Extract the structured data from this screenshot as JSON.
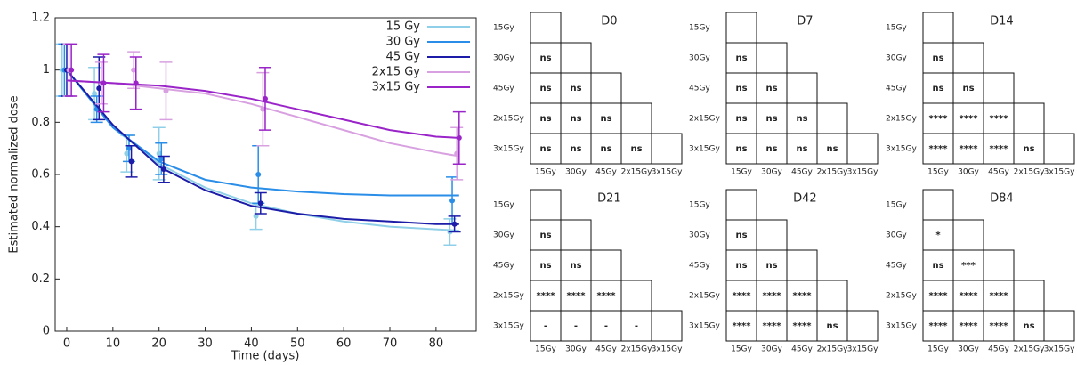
{
  "chart_data": {
    "type": "errorbar-line",
    "y_label": "Estimated normalized dose",
    "x_label": "Time (days)",
    "xlim": [
      -2.5,
      88.7
    ],
    "ylim": [
      0,
      1.2
    ],
    "xticks": [
      0,
      10,
      20,
      30,
      40,
      50,
      60,
      70,
      80
    ],
    "yticks": [
      0,
      0.2,
      0.4,
      0.6,
      0.8,
      1,
      1.2
    ],
    "x": [
      0,
      7,
      14,
      21,
      42,
      84
    ],
    "fit_x": [
      0,
      10,
      20,
      30,
      40,
      50,
      60,
      70,
      80,
      85
    ],
    "series": [
      {
        "name": "15 Gy",
        "color": "#8fd0e8",
        "values": [
          1.0,
          0.91,
          0.68,
          0.68,
          0.44,
          0.38
        ],
        "errors": [
          0.1,
          0.1,
          0.07,
          0.1,
          0.05,
          0.05
        ],
        "fit": [
          1.0,
          0.78,
          0.64,
          0.55,
          0.49,
          0.45,
          0.42,
          0.4,
          0.39,
          0.385
        ]
      },
      {
        "name": "30 Gy",
        "color": "#2a8ee8",
        "values": [
          1.0,
          0.85,
          0.7,
          0.66,
          0.6,
          0.5
        ],
        "errors": [
          0.1,
          0.05,
          0.05,
          0.06,
          0.11,
          0.09
        ],
        "fit": [
          1.0,
          0.78,
          0.65,
          0.58,
          0.55,
          0.535,
          0.525,
          0.52,
          0.52,
          0.52
        ]
      },
      {
        "name": "45 Gy",
        "color": "#1c1ca8",
        "values": [
          1.0,
          0.93,
          0.65,
          0.62,
          0.49,
          0.41
        ],
        "errors": [
          0.1,
          0.12,
          0.06,
          0.05,
          0.04,
          0.03
        ],
        "fit": [
          1.0,
          0.79,
          0.63,
          0.54,
          0.48,
          0.45,
          0.43,
          0.42,
          0.41,
          0.41
        ]
      },
      {
        "name": "2x15 Gy",
        "color": "#d8a0e0",
        "values": [
          1.0,
          0.95,
          1.0,
          0.92,
          0.85,
          0.68
        ],
        "errors": [
          0.1,
          0.08,
          0.07,
          0.11,
          0.14,
          0.1
        ],
        "fit": [
          0.96,
          0.95,
          0.93,
          0.91,
          0.87,
          0.82,
          0.77,
          0.72,
          0.685,
          0.67
        ]
      },
      {
        "name": "3x15 Gy",
        "color": "#9a24c8",
        "values": [
          1.0,
          0.95,
          0.95,
          null,
          0.89,
          0.74
        ],
        "errors": [
          0.1,
          0.11,
          0.1,
          null,
          0.12,
          0.1
        ],
        "fit": [
          0.96,
          0.95,
          0.94,
          0.92,
          0.89,
          0.85,
          0.81,
          0.77,
          0.745,
          0.74
        ]
      }
    ]
  },
  "matrices": {
    "labels": [
      "15Gy",
      "30Gy",
      "45Gy",
      "2x15Gy",
      "3x15Gy"
    ],
    "panels": [
      {
        "title": "D0",
        "rows": [
          [],
          [
            "ns"
          ],
          [
            "ns",
            "ns"
          ],
          [
            "ns",
            "ns",
            "ns"
          ],
          [
            "ns",
            "ns",
            "ns",
            "ns"
          ]
        ]
      },
      {
        "title": "D7",
        "rows": [
          [],
          [
            "ns"
          ],
          [
            "ns",
            "ns"
          ],
          [
            "ns",
            "ns",
            "ns"
          ],
          [
            "ns",
            "ns",
            "ns",
            "ns"
          ]
        ]
      },
      {
        "title": "D14",
        "rows": [
          [],
          [
            "ns"
          ],
          [
            "ns",
            "ns"
          ],
          [
            "****",
            "****",
            "****"
          ],
          [
            "****",
            "****",
            "****",
            "ns"
          ]
        ]
      },
      {
        "title": "D21",
        "rows": [
          [],
          [
            "ns"
          ],
          [
            "ns",
            "ns"
          ],
          [
            "****",
            "****",
            "****"
          ],
          [
            "-",
            "-",
            "-",
            "-"
          ]
        ]
      },
      {
        "title": "D42",
        "rows": [
          [],
          [
            "ns"
          ],
          [
            "ns",
            "ns"
          ],
          [
            "****",
            "****",
            "****"
          ],
          [
            "****",
            "****",
            "****",
            "ns"
          ]
        ]
      },
      {
        "title": "D84",
        "rows": [
          [],
          [
            "*"
          ],
          [
            "ns",
            "***"
          ],
          [
            "****",
            "****",
            "****"
          ],
          [
            "****",
            "****",
            "****",
            "ns"
          ]
        ]
      }
    ]
  }
}
